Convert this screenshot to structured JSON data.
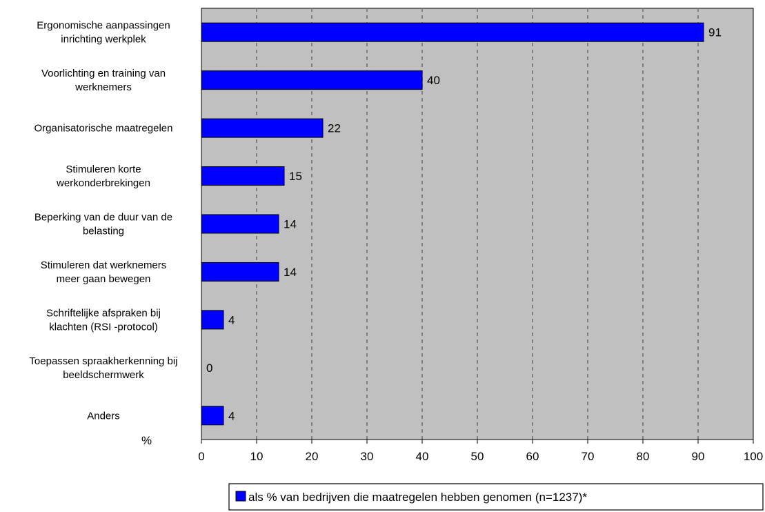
{
  "chart_data": {
    "type": "bar",
    "orientation": "horizontal",
    "categories": [
      [
        "Ergonomische aanpassingen",
        "inrichting werkplek"
      ],
      [
        "Voorlichting en training van",
        "werknemers"
      ],
      [
        "Organisatorische maatregelen"
      ],
      [
        "Stimuleren korte",
        "werkonderbrekingen"
      ],
      [
        "Beperking van de duur van de",
        "belasting"
      ],
      [
        "Stimuleren dat werknemers",
        "meer gaan bewegen"
      ],
      [
        "Schriftelijke afspraken bij",
        "klachten (RSI -protocol)"
      ],
      [
        "Toepassen spraakherkenning bij",
        "beeldschermwerk"
      ],
      [
        "Anders"
      ]
    ],
    "values": [
      91,
      40,
      22,
      15,
      14,
      14,
      4,
      0,
      4
    ],
    "series": [
      {
        "name": "als % van bedrijven die maatregelen hebben genomen (n=1237)*",
        "values": [
          91,
          40,
          22,
          15,
          14,
          14,
          4,
          0,
          4
        ]
      }
    ],
    "xlim": [
      0,
      100
    ],
    "xticks": [
      0,
      10,
      20,
      30,
      40,
      50,
      60,
      70,
      80,
      90,
      100
    ],
    "unit_label": "%",
    "grid": true,
    "legend_position": "bottom",
    "colors": {
      "bar": "#0000ff",
      "plot_background": "#c0c0c0",
      "gridline": "#808080"
    }
  }
}
